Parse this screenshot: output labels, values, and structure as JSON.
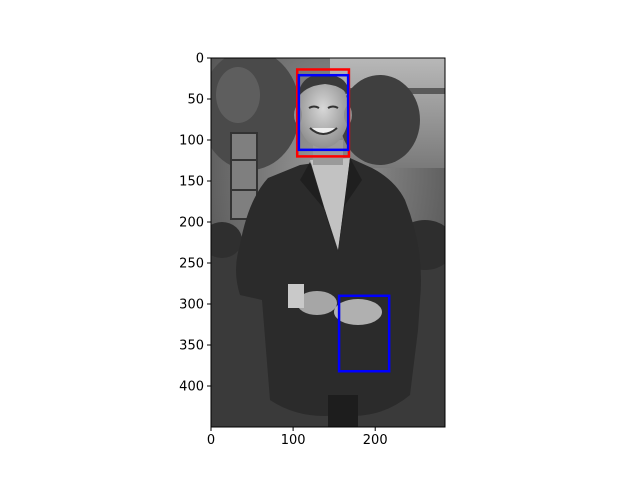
{
  "figure": {
    "image_description": "grayscale photo of a smiling man in a dark suit jacket standing outdoors in front of a building with trees",
    "x_axis": {
      "range": [
        0,
        285
      ],
      "ticks": [
        0,
        100,
        200
      ],
      "tick_labels": [
        "0",
        "100",
        "200"
      ]
    },
    "y_axis": {
      "range": [
        450,
        0
      ],
      "inverted": true,
      "ticks": [
        0,
        50,
        100,
        150,
        200,
        250,
        300,
        350,
        400
      ],
      "tick_labels": [
        "0",
        "50",
        "100",
        "150",
        "200",
        "250",
        "300",
        "350",
        "400"
      ]
    },
    "boxes": [
      {
        "label": "face-box-red",
        "color": "#ff0000",
        "x0": 105,
        "y0": 14,
        "x1": 168,
        "y1": 120
      },
      {
        "label": "face-box-blue",
        "color": "#0000ff",
        "x0": 107,
        "y0": 21,
        "x1": 167,
        "y1": 112
      },
      {
        "label": "hands-box-blue",
        "color": "#0000ff",
        "x0": 156,
        "y0": 290,
        "x1": 217,
        "y1": 382
      }
    ]
  }
}
